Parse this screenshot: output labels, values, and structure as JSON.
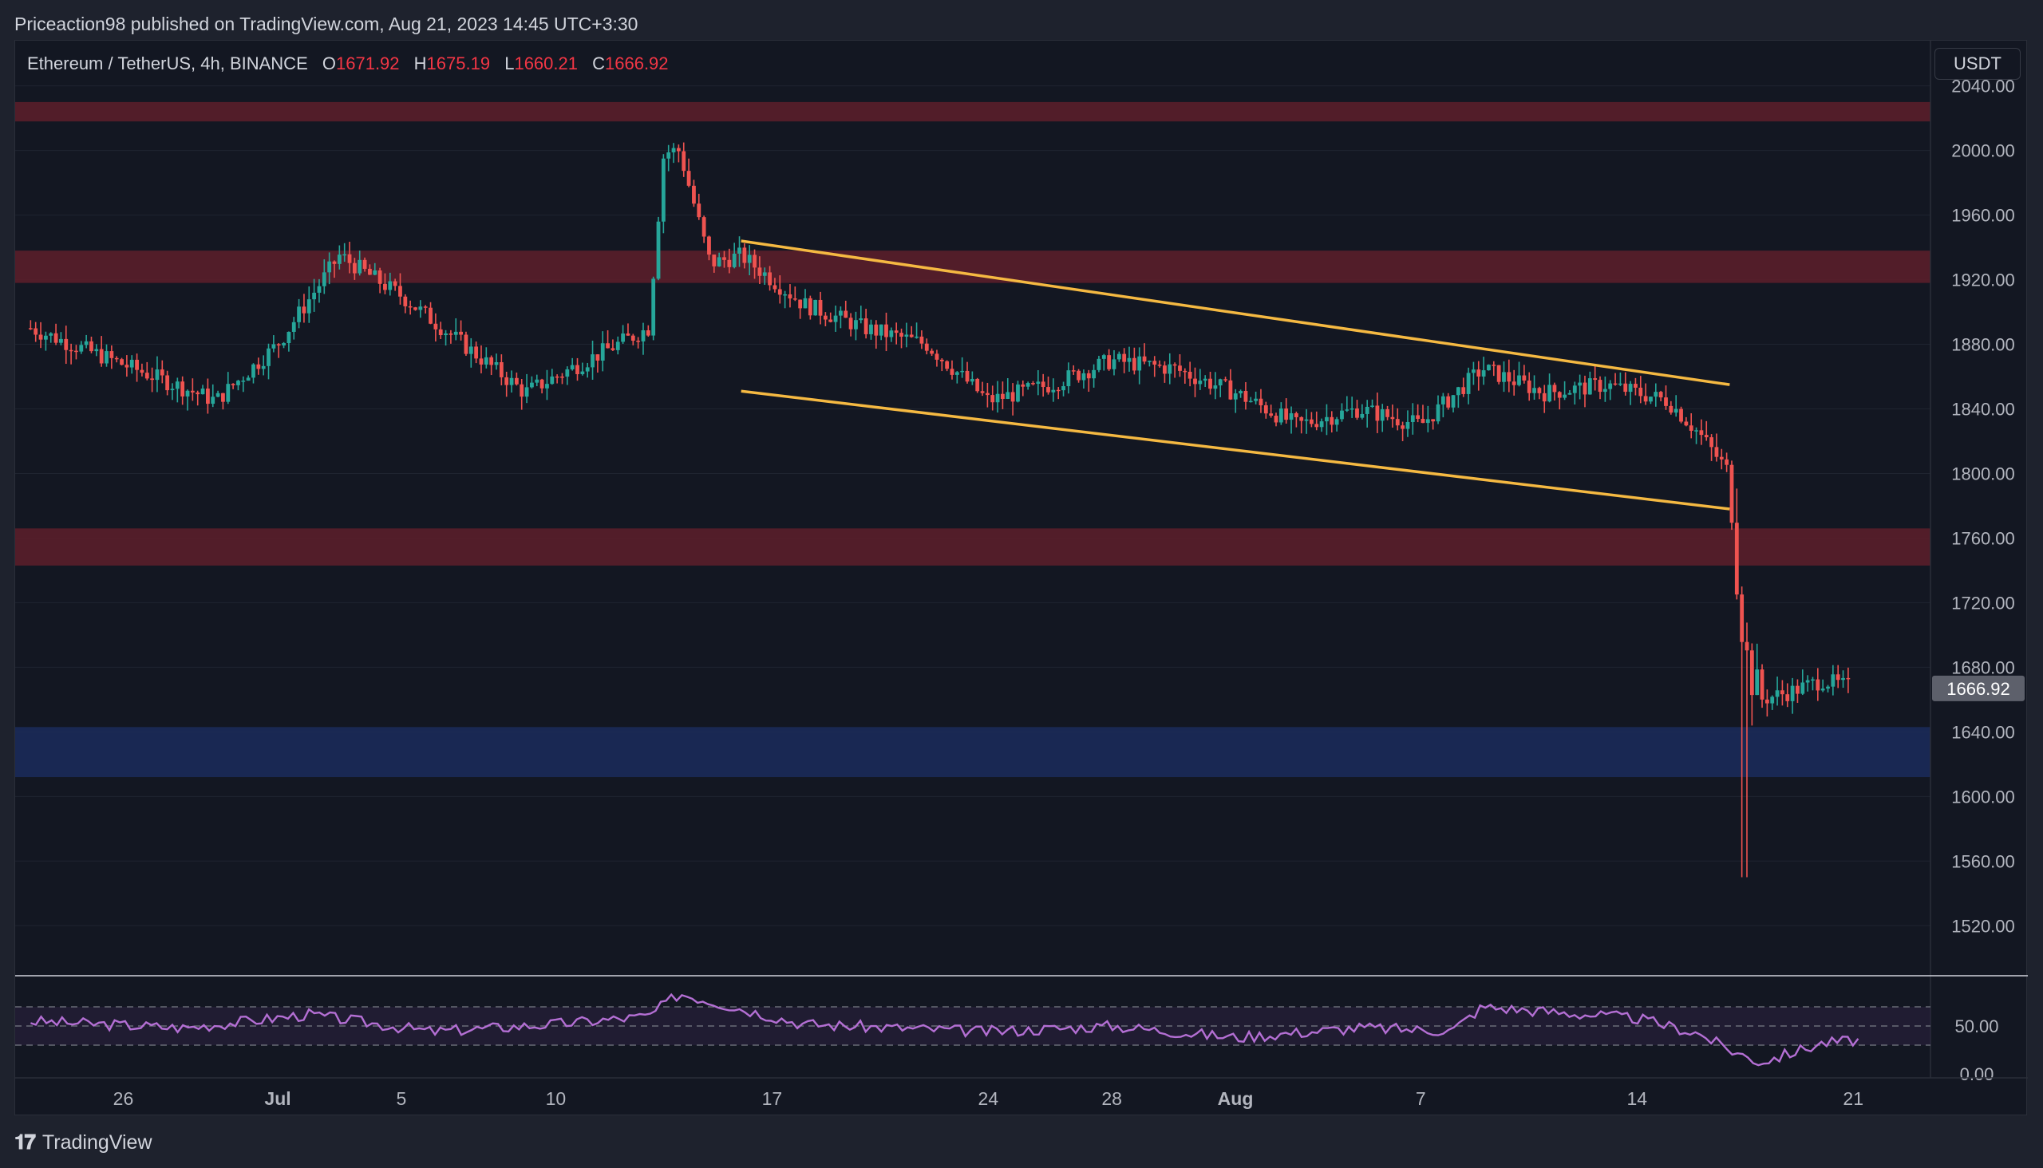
{
  "header": {
    "publisher_line": "Priceaction98 published on TradingView.com, Aug 21, 2023 14:45 UTC+3:30"
  },
  "legend": {
    "symbol": "Ethereum / TetherUS, 4h, BINANCE",
    "open_label": "O",
    "open": "1671.92",
    "high_label": "H",
    "high": "1675.19",
    "low_label": "L",
    "low": "1660.21",
    "close_label": "C",
    "close": "1666.92"
  },
  "currency_button": "USDT",
  "footer": {
    "brand": "TradingView",
    "logo": "tradingview-logo-icon"
  },
  "colors": {
    "up": "#26a69a",
    "down": "#ef5350",
    "zone_red": "#5e1f2a",
    "zone_blue": "#1b2c5c",
    "channel": "#f5b942",
    "rsi": "#b46fd4"
  },
  "chart_data": [
    {
      "type": "candlestick",
      "title": "Ethereum / TetherUS, 4h, BINANCE",
      "x_tick_labels": [
        "26",
        "Jul",
        "5",
        "10",
        "17",
        "24",
        "28",
        "Aug",
        "7",
        "14",
        "21"
      ],
      "y_tick_labels": [
        "2040.00",
        "2000.00",
        "1960.00",
        "1920.00",
        "1880.00",
        "1840.00",
        "1800.00",
        "1760.00",
        "1720.00",
        "1680.00",
        "1640.00",
        "1600.00",
        "1560.00",
        "1520.00"
      ],
      "ylim": [
        1490,
        2068
      ],
      "last_price": "1666.92",
      "zones": [
        {
          "color": "red",
          "from": 2018,
          "to": 2030
        },
        {
          "color": "red",
          "from": 1918,
          "to": 1938
        },
        {
          "color": "red",
          "from": 1743,
          "to": 1766
        },
        {
          "color": "blue",
          "from": 1612,
          "to": 1643
        }
      ],
      "channel_lines": [
        {
          "from": [
            "Jul 16",
            1944
          ],
          "to": [
            "Aug 17",
            1855
          ]
        },
        {
          "from": [
            "Jul 16",
            1851
          ],
          "to": [
            "Aug 17",
            1778
          ]
        }
      ],
      "series": [
        {
          "x": [
            "Jun 23",
            "Jun 25",
            "Jun 27",
            "Jun 29",
            "Jul 1",
            "Jul 3",
            "Jul 5",
            "Jul 7",
            "Jul 9",
            "Jul 11",
            "Jul 13",
            "Jul 13.5",
            "Jul 14",
            "Jul 15",
            "Jul 16",
            "Jul 18",
            "Jul 20",
            "Jul 22",
            "Jul 24",
            "Jul 26",
            "Jul 28",
            "Jul 30",
            "Aug 1",
            "Aug 3",
            "Aug 5",
            "Aug 7",
            "Aug 9",
            "Aug 11",
            "Aug 13",
            "Aug 15",
            "Aug 16",
            "Aug 17",
            "Aug 17.3",
            "Aug 17.6",
            "Aug 18",
            "Aug 19",
            "Aug 20",
            "Aug 21"
          ],
          "values": [
            1890,
            1875,
            1860,
            1845,
            1880,
            1935,
            1910,
            1880,
            1850,
            1870,
            1890,
            1999,
            2000,
            1930,
            1935,
            1905,
            1890,
            1880,
            1845,
            1855,
            1870,
            1865,
            1850,
            1830,
            1840,
            1830,
            1865,
            1850,
            1855,
            1845,
            1825,
            1800,
            1720,
            1680,
            1660,
            1665,
            1672,
            1667
          ]
        }
      ]
    },
    {
      "type": "line",
      "title": "",
      "y_tick_labels": [
        "50.00",
        "0.00"
      ],
      "ylim": [
        0,
        100
      ],
      "series": [
        {
          "x": [
            "Jun 23",
            "Jun 28",
            "Jul 2",
            "Jul 6",
            "Jul 10",
            "Jul 13",
            "Jul 14",
            "Jul 18",
            "Jul 24",
            "Jul 28",
            "Aug 1",
            "Aug 5",
            "Aug 8",
            "Aug 9",
            "Aug 14",
            "Aug 16",
            "Aug 17",
            "Aug 18",
            "Aug 19",
            "Aug 20",
            "Aug 21"
          ],
          "values": [
            55,
            48,
            62,
            44,
            52,
            60,
            84,
            52,
            44,
            50,
            38,
            48,
            45,
            70,
            58,
            42,
            25,
            12,
            22,
            32,
            35
          ]
        }
      ]
    }
  ]
}
